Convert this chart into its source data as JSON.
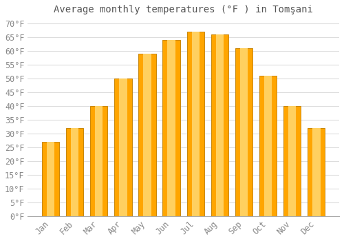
{
  "title": "Average monthly temperatures (°F ) in Tomşani",
  "months": [
    "Jan",
    "Feb",
    "Mar",
    "Apr",
    "May",
    "Jun",
    "Jul",
    "Aug",
    "Sep",
    "Oct",
    "Nov",
    "Dec"
  ],
  "values": [
    27,
    32,
    40,
    50,
    59,
    64,
    67,
    66,
    61,
    51,
    40,
    32
  ],
  "bar_color_main": "#FFA500",
  "bar_color_light": "#FFD060",
  "bar_edge_color": "#C8860A",
  "background_color": "#FFFFFF",
  "grid_color": "#DDDDDD",
  "text_color": "#888888",
  "title_color": "#555555",
  "ylim": [
    0,
    72
  ],
  "yticks": [
    0,
    5,
    10,
    15,
    20,
    25,
    30,
    35,
    40,
    45,
    50,
    55,
    60,
    65,
    70
  ],
  "title_fontsize": 10,
  "tick_fontsize": 8.5,
  "bar_width": 0.72
}
